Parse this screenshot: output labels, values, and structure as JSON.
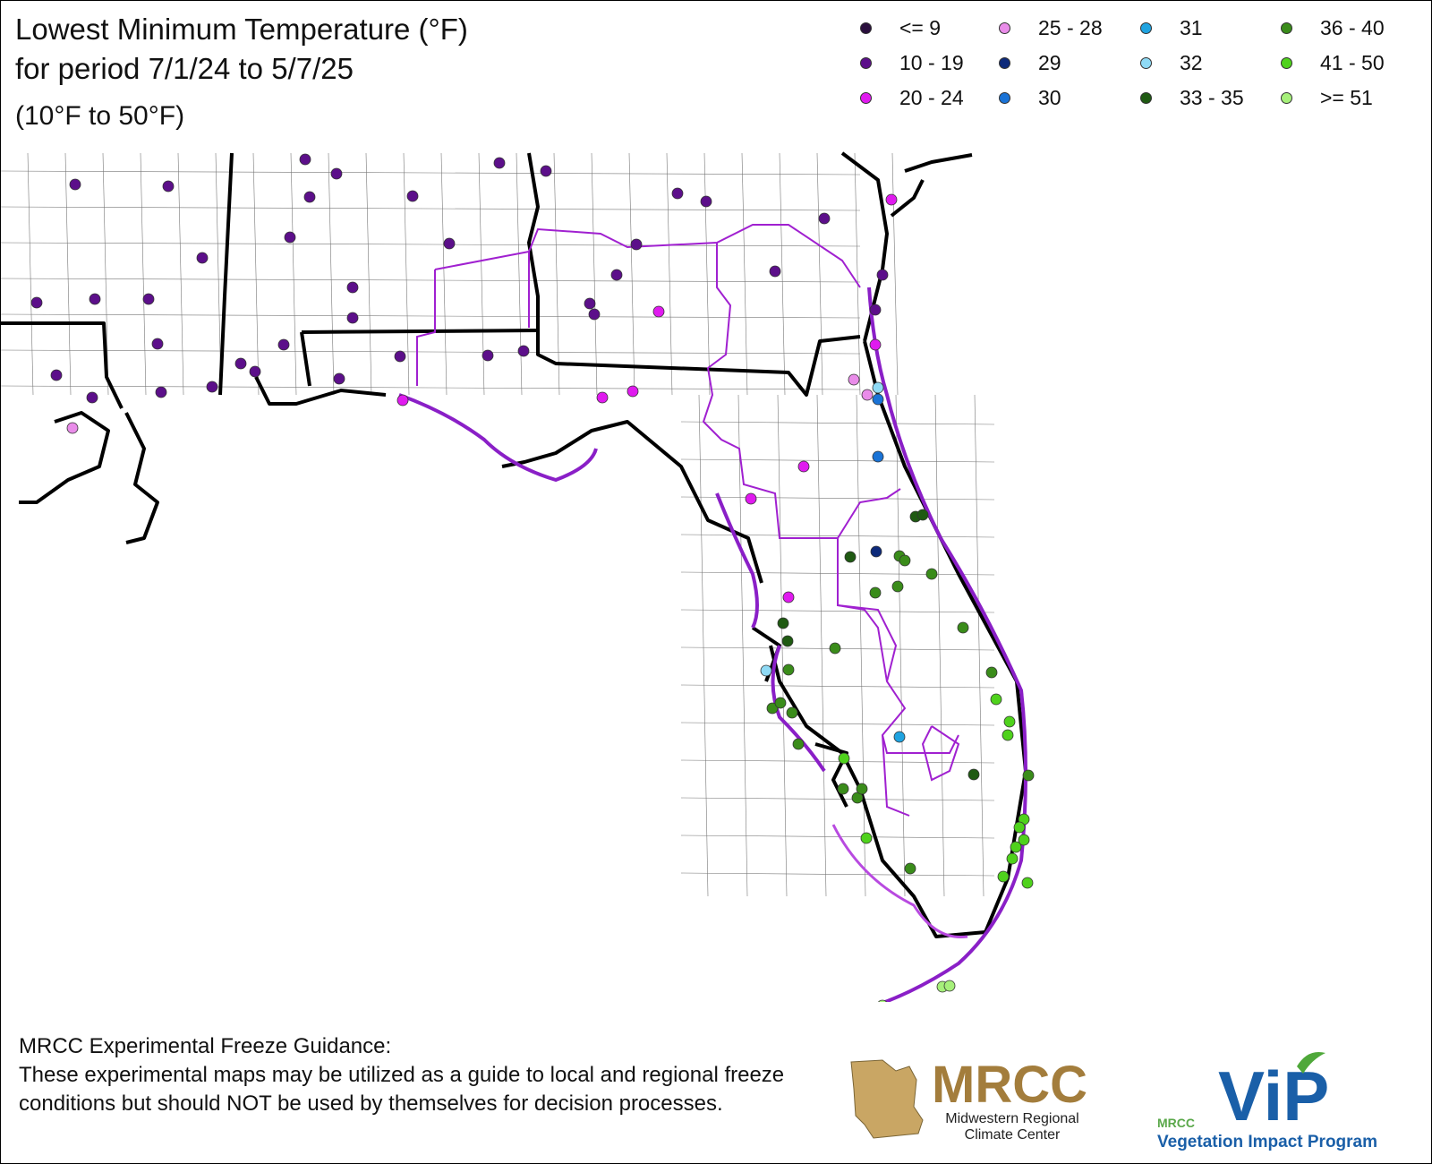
{
  "title": {
    "line1": "Lowest Minimum Temperature (°F)",
    "line2": "for period 7/1/24 to 5/7/25",
    "range": "(10°F to 50°F)"
  },
  "legend": [
    {
      "label": "<= 9",
      "color": "#2a0f3d"
    },
    {
      "label": "10 - 19",
      "color": "#5c0f8a"
    },
    {
      "label": "20 - 24",
      "color": "#e01aef"
    },
    {
      "label": "25 - 28",
      "color": "#e98ce9"
    },
    {
      "label": "29",
      "color": "#0d2a7a"
    },
    {
      "label": "30",
      "color": "#1a73d6"
    },
    {
      "label": "31",
      "color": "#1fa3e0"
    },
    {
      "label": "32",
      "color": "#8fdaf5"
    },
    {
      "label": "33 - 35",
      "color": "#1f5a12"
    },
    {
      "label": "36 - 40",
      "color": "#3a8c1a"
    },
    {
      "label": "41 - 50",
      "color": "#4fd21c"
    },
    {
      "label": ">= 51",
      "color": "#a6f07a"
    }
  ],
  "disclaimer": {
    "heading": "MRCC Experimental Freeze Guidance:",
    "body": "These experimental maps may be utilized as a guide to local and regional freeze conditions but should NOT be used by themselves for decision processes."
  },
  "logos": {
    "mrcc_name": "MRCC",
    "mrcc_sub1": "Midwestern Regional",
    "mrcc_sub2": "Climate Center",
    "vip_small": "MRCC",
    "vip_name": "ViP",
    "vip_sub": "Vegetation Impact Program"
  }
}
